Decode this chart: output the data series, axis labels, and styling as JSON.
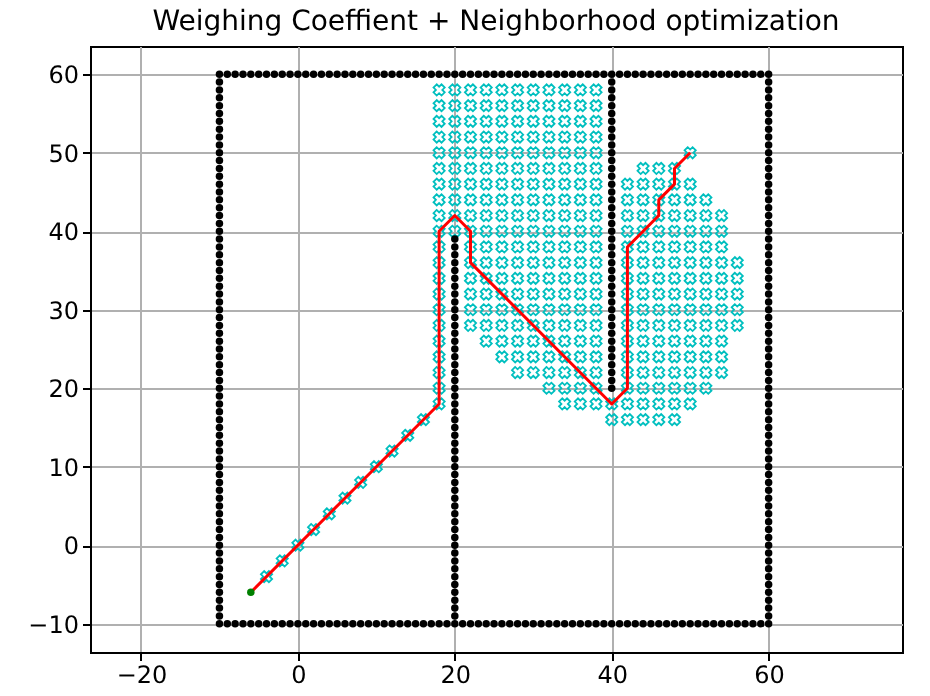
{
  "chart_data": {
    "type": "scatter",
    "title": "Weighing Coeffient + Neighborhood optimization",
    "xlim": [
      -26.5,
      77
    ],
    "ylim": [
      -13.6,
      63.6
    ],
    "xticks": [
      -20,
      0,
      20,
      40,
      60
    ],
    "yticks": [
      -10,
      0,
      10,
      20,
      30,
      40,
      50,
      60
    ],
    "grid": true,
    "series": [
      {
        "type": "scatter",
        "marker": "cross",
        "color": "#00bfbf",
        "x": [
          18,
          20,
          22,
          24,
          26,
          28,
          30,
          32,
          34,
          36,
          38
        ],
        "values": [
          58,
          58,
          58,
          58,
          58,
          58,
          58,
          58,
          58,
          58,
          58
        ]
      },
      {
        "type": "scatter",
        "marker": "cross",
        "color": "#00bfbf",
        "x": [
          18,
          20,
          22,
          24,
          26,
          28,
          30,
          32,
          34,
          36,
          38
        ],
        "values": [
          56,
          56,
          56,
          56,
          56,
          56,
          56,
          56,
          56,
          56,
          56
        ]
      },
      {
        "type": "scatter",
        "marker": "cross",
        "color": "#00bfbf",
        "x": [
          18,
          20,
          22,
          24,
          26,
          28,
          30,
          32,
          34,
          36,
          38
        ],
        "values": [
          54,
          54,
          54,
          54,
          54,
          54,
          54,
          54,
          54,
          54,
          54
        ]
      },
      {
        "type": "scatter",
        "marker": "cross",
        "color": "#00bfbf",
        "x": [
          18,
          20,
          22,
          24,
          26,
          28,
          30,
          32,
          34,
          36,
          38
        ],
        "values": [
          52,
          52,
          52,
          52,
          52,
          52,
          52,
          52,
          52,
          52,
          52
        ]
      },
      {
        "type": "scatter",
        "marker": "cross",
        "color": "#00bfbf",
        "x": [
          18,
          20,
          22,
          24,
          26,
          28,
          30,
          32,
          34,
          36,
          38,
          50
        ],
        "values": [
          50,
          50,
          50,
          50,
          50,
          50,
          50,
          50,
          50,
          50,
          50,
          50
        ]
      },
      {
        "type": "scatter",
        "marker": "cross",
        "color": "#00bfbf",
        "x": [
          18,
          20,
          22,
          24,
          26,
          28,
          30,
          32,
          34,
          36,
          38,
          44,
          46,
          48
        ],
        "values": [
          48,
          48,
          48,
          48,
          48,
          48,
          48,
          48,
          48,
          48,
          48,
          48,
          48,
          48
        ]
      },
      {
        "type": "scatter",
        "marker": "cross",
        "color": "#00bfbf",
        "x": [
          18,
          20,
          22,
          24,
          26,
          28,
          30,
          32,
          34,
          36,
          38,
          42,
          44,
          46,
          48,
          50
        ],
        "values": [
          46,
          46,
          46,
          46,
          46,
          46,
          46,
          46,
          46,
          46,
          46,
          46,
          46,
          46,
          46,
          46
        ]
      },
      {
        "type": "scatter",
        "marker": "cross",
        "color": "#00bfbf",
        "x": [
          18,
          20,
          22,
          24,
          26,
          28,
          30,
          32,
          34,
          36,
          38,
          42,
          44,
          46,
          48,
          50,
          52
        ],
        "values": [
          44,
          44,
          44,
          44,
          44,
          44,
          44,
          44,
          44,
          44,
          44,
          44,
          44,
          44,
          44,
          44,
          44
        ]
      },
      {
        "type": "scatter",
        "marker": "cross",
        "color": "#00bfbf",
        "x": [
          18,
          20,
          22,
          24,
          26,
          28,
          30,
          32,
          34,
          36,
          38,
          42,
          44,
          46,
          48,
          50,
          52,
          54
        ],
        "values": [
          42,
          42,
          42,
          42,
          42,
          42,
          42,
          42,
          42,
          42,
          42,
          42,
          42,
          42,
          42,
          42,
          42,
          42
        ]
      },
      {
        "type": "scatter",
        "marker": "cross",
        "color": "#00bfbf",
        "x": [
          18,
          20,
          22,
          24,
          26,
          28,
          30,
          32,
          34,
          36,
          38,
          42,
          44,
          46,
          48,
          50,
          52,
          54
        ],
        "values": [
          40,
          40,
          40,
          40,
          40,
          40,
          40,
          40,
          40,
          40,
          40,
          40,
          40,
          40,
          40,
          40,
          40,
          40
        ]
      },
      {
        "type": "scatter",
        "marker": "cross",
        "color": "#00bfbf",
        "x": [
          18,
          22,
          24,
          26,
          28,
          30,
          32,
          34,
          36,
          38,
          42,
          44,
          46,
          48,
          50,
          52,
          54
        ],
        "values": [
          38,
          38,
          38,
          38,
          38,
          38,
          38,
          38,
          38,
          38,
          38,
          38,
          38,
          38,
          38,
          38,
          38
        ]
      },
      {
        "type": "scatter",
        "marker": "cross",
        "color": "#00bfbf",
        "x": [
          18,
          22,
          24,
          26,
          28,
          30,
          32,
          34,
          36,
          38,
          42,
          44,
          46,
          48,
          50,
          52,
          54,
          56
        ],
        "values": [
          36,
          36,
          36,
          36,
          36,
          36,
          36,
          36,
          36,
          36,
          36,
          36,
          36,
          36,
          36,
          36,
          36,
          36
        ]
      },
      {
        "type": "scatter",
        "marker": "cross",
        "color": "#00bfbf",
        "x": [
          18,
          22,
          24,
          26,
          28,
          30,
          32,
          34,
          36,
          38,
          42,
          44,
          46,
          48,
          50,
          52,
          54,
          56
        ],
        "values": [
          34,
          34,
          34,
          34,
          34,
          34,
          34,
          34,
          34,
          34,
          34,
          34,
          34,
          34,
          34,
          34,
          34,
          34
        ]
      },
      {
        "type": "scatter",
        "marker": "cross",
        "color": "#00bfbf",
        "x": [
          18,
          22,
          24,
          26,
          28,
          30,
          32,
          34,
          36,
          38,
          42,
          44,
          46,
          48,
          50,
          52,
          54,
          56
        ],
        "values": [
          32,
          32,
          32,
          32,
          32,
          32,
          32,
          32,
          32,
          32,
          32,
          32,
          32,
          32,
          32,
          32,
          32,
          32
        ]
      },
      {
        "type": "scatter",
        "marker": "cross",
        "color": "#00bfbf",
        "x": [
          18,
          22,
          24,
          26,
          28,
          30,
          32,
          34,
          36,
          38,
          42,
          44,
          46,
          48,
          50,
          52,
          54,
          56
        ],
        "values": [
          30,
          30,
          30,
          30,
          30,
          30,
          30,
          30,
          30,
          30,
          30,
          30,
          30,
          30,
          30,
          30,
          30,
          30
        ]
      },
      {
        "type": "scatter",
        "marker": "cross",
        "color": "#00bfbf",
        "x": [
          18,
          22,
          24,
          26,
          28,
          30,
          32,
          34,
          36,
          38,
          42,
          44,
          46,
          48,
          50,
          52,
          54,
          56
        ],
        "values": [
          28,
          28,
          28,
          28,
          28,
          28,
          28,
          28,
          28,
          28,
          28,
          28,
          28,
          28,
          28,
          28,
          28,
          28
        ]
      },
      {
        "type": "scatter",
        "marker": "cross",
        "color": "#00bfbf",
        "x": [
          18,
          24,
          26,
          28,
          30,
          32,
          34,
          36,
          38,
          42,
          44,
          46,
          48,
          50,
          52,
          54
        ],
        "values": [
          26,
          26,
          26,
          26,
          26,
          26,
          26,
          26,
          26,
          26,
          26,
          26,
          26,
          26,
          26,
          26
        ]
      },
      {
        "type": "scatter",
        "marker": "cross",
        "color": "#00bfbf",
        "x": [
          18,
          26,
          28,
          30,
          32,
          34,
          36,
          38,
          42,
          44,
          46,
          48,
          50,
          52,
          54
        ],
        "values": [
          24,
          24,
          24,
          24,
          24,
          24,
          24,
          24,
          24,
          24,
          24,
          24,
          24,
          24,
          24
        ]
      },
      {
        "type": "scatter",
        "marker": "cross",
        "color": "#00bfbf",
        "x": [
          18,
          28,
          30,
          32,
          34,
          36,
          38,
          42,
          44,
          46,
          48,
          50,
          52,
          54
        ],
        "values": [
          22,
          22,
          22,
          22,
          22,
          22,
          22,
          22,
          22,
          22,
          22,
          22,
          22,
          22
        ]
      },
      {
        "type": "scatter",
        "marker": "cross",
        "color": "#00bfbf",
        "x": [
          18,
          32,
          34,
          36,
          38,
          42,
          44,
          46,
          48,
          50,
          52
        ],
        "values": [
          20,
          20,
          20,
          20,
          20,
          20,
          20,
          20,
          20,
          20,
          20
        ]
      },
      {
        "type": "scatter",
        "marker": "cross",
        "color": "#00bfbf",
        "x": [
          18,
          34,
          36,
          38,
          40,
          42,
          44,
          46,
          48,
          50
        ],
        "values": [
          18,
          18,
          18,
          18,
          18,
          18,
          18,
          18,
          18,
          18
        ]
      },
      {
        "type": "scatter",
        "marker": "cross",
        "color": "#00bfbf",
        "x": [
          40,
          42,
          44,
          46,
          48
        ],
        "values": [
          16,
          16,
          16,
          16,
          16
        ]
      },
      {
        "type": "scatter",
        "marker": "cross",
        "color": "#00bfbf",
        "x": [
          -4,
          -2,
          0,
          2,
          4,
          6,
          8,
          10,
          12,
          14,
          16
        ],
        "values": [
          -4,
          -2,
          0,
          2,
          4,
          6,
          8,
          10,
          12,
          14,
          16
        ]
      },
      {
        "type": "scatter",
        "marker": "circle",
        "color": "#000000",
        "x": [
          -10,
          -10,
          -10,
          -10,
          -10,
          -10,
          -10,
          -10,
          -10,
          -10,
          -10,
          -10,
          -10,
          -10,
          -10,
          -10,
          -10,
          -10,
          -10,
          -10,
          -10,
          -10,
          -10,
          -10,
          -10,
          -10,
          -10,
          -10,
          -10,
          -10,
          -10,
          -10,
          -10,
          -10,
          -10,
          -10,
          -10,
          -10,
          -10,
          -10,
          -10,
          -10,
          -10,
          -10,
          -10,
          -10,
          -10,
          -10,
          -10,
          -10,
          -10,
          -10,
          -10,
          -10,
          -10,
          -10,
          -10,
          -10,
          -10,
          -10,
          -10,
          -10,
          -10,
          -10,
          -10,
          -10,
          -10,
          -10,
          -10,
          -10,
          -10
        ],
        "values": [
          -10,
          -9,
          -8,
          -7,
          -6,
          -5,
          -4,
          -3,
          -2,
          -1,
          0,
          1,
          2,
          3,
          4,
          5,
          6,
          7,
          8,
          9,
          10,
          11,
          12,
          13,
          14,
          15,
          16,
          17,
          18,
          19,
          20,
          21,
          22,
          23,
          24,
          25,
          26,
          27,
          28,
          29,
          30,
          31,
          32,
          33,
          34,
          35,
          36,
          37,
          38,
          39,
          40,
          41,
          42,
          43,
          44,
          45,
          46,
          47,
          48,
          49,
          50,
          51,
          52,
          53,
          54,
          55,
          56,
          57,
          58,
          59,
          60
        ]
      },
      {
        "type": "scatter",
        "marker": "circle",
        "color": "#000000",
        "x": [
          -9,
          -8,
          -7,
          -6,
          -5,
          -4,
          -3,
          -2,
          -1,
          0,
          1,
          2,
          3,
          4,
          5,
          6,
          7,
          8,
          9,
          10,
          11,
          12,
          13,
          14,
          15,
          16,
          17,
          18,
          19,
          20,
          21,
          22,
          23,
          24,
          25,
          26,
          27,
          28,
          29,
          30,
          31,
          32,
          33,
          34,
          35,
          36,
          37,
          38,
          39,
          40,
          41,
          42,
          43,
          44,
          45,
          46,
          47,
          48,
          49,
          50,
          51,
          52,
          53,
          54,
          55,
          56,
          57,
          58,
          59,
          60
        ],
        "values": [
          60,
          60,
          60,
          60,
          60,
          60,
          60,
          60,
          60,
          60,
          60,
          60,
          60,
          60,
          60,
          60,
          60,
          60,
          60,
          60,
          60,
          60,
          60,
          60,
          60,
          60,
          60,
          60,
          60,
          60,
          60,
          60,
          60,
          60,
          60,
          60,
          60,
          60,
          60,
          60,
          60,
          60,
          60,
          60,
          60,
          60,
          60,
          60,
          60,
          60,
          60,
          60,
          60,
          60,
          60,
          60,
          60,
          60,
          60,
          60,
          60,
          60,
          60,
          60,
          60,
          60,
          60,
          60,
          60,
          60
        ]
      },
      {
        "type": "scatter",
        "marker": "circle",
        "color": "#000000",
        "x": [
          60,
          60,
          60,
          60,
          60,
          60,
          60,
          60,
          60,
          60,
          60,
          60,
          60,
          60,
          60,
          60,
          60,
          60,
          60,
          60,
          60,
          60,
          60,
          60,
          60,
          60,
          60,
          60,
          60,
          60,
          60,
          60,
          60,
          60,
          60,
          60,
          60,
          60,
          60,
          60,
          60,
          60,
          60,
          60,
          60,
          60,
          60,
          60,
          60,
          60,
          60,
          60,
          60,
          60,
          60,
          60,
          60,
          60,
          60,
          60,
          60,
          60,
          60,
          60,
          60,
          60,
          60,
          60,
          60,
          60
        ],
        "values": [
          -10,
          -9,
          -8,
          -7,
          -6,
          -5,
          -4,
          -3,
          -2,
          -1,
          0,
          1,
          2,
          3,
          4,
          5,
          6,
          7,
          8,
          9,
          10,
          11,
          12,
          13,
          14,
          15,
          16,
          17,
          18,
          19,
          20,
          21,
          22,
          23,
          24,
          25,
          26,
          27,
          28,
          29,
          30,
          31,
          32,
          33,
          34,
          35,
          36,
          37,
          38,
          39,
          40,
          41,
          42,
          43,
          44,
          45,
          46,
          47,
          48,
          49,
          50,
          51,
          52,
          53,
          54,
          55,
          56,
          57,
          58,
          59
        ]
      },
      {
        "type": "scatter",
        "marker": "circle",
        "color": "#000000",
        "x": [
          -9,
          -8,
          -7,
          -6,
          -5,
          -4,
          -3,
          -2,
          -1,
          0,
          1,
          2,
          3,
          4,
          5,
          6,
          7,
          8,
          9,
          10,
          11,
          12,
          13,
          14,
          15,
          16,
          17,
          18,
          19,
          20,
          21,
          22,
          23,
          24,
          25,
          26,
          27,
          28,
          29,
          30,
          31,
          32,
          33,
          34,
          35,
          36,
          37,
          38,
          39,
          40,
          41,
          42,
          43,
          44,
          45,
          46,
          47,
          48,
          49,
          50,
          51,
          52,
          53,
          54,
          55,
          56,
          57,
          58,
          59
        ],
        "values": [
          -10,
          -10,
          -10,
          -10,
          -10,
          -10,
          -10,
          -10,
          -10,
          -10,
          -10,
          -10,
          -10,
          -10,
          -10,
          -10,
          -10,
          -10,
          -10,
          -10,
          -10,
          -10,
          -10,
          -10,
          -10,
          -10,
          -10,
          -10,
          -10,
          -10,
          -10,
          -10,
          -10,
          -10,
          -10,
          -10,
          -10,
          -10,
          -10,
          -10,
          -10,
          -10,
          -10,
          -10,
          -10,
          -10,
          -10,
          -10,
          -10,
          -10,
          -10,
          -10,
          -10,
          -10,
          -10,
          -10,
          -10,
          -10,
          -10,
          -10,
          -10,
          -10,
          -10,
          -10,
          -10,
          -10,
          -10,
          -10,
          -10
        ]
      },
      {
        "type": "scatter",
        "marker": "circle",
        "color": "#000000",
        "x": [
          20,
          20,
          20,
          20,
          20,
          20,
          20,
          20,
          20,
          20,
          20,
          20,
          20,
          20,
          20,
          20,
          20,
          20,
          20,
          20,
          20,
          20,
          20,
          20,
          20,
          20,
          20,
          20,
          20,
          20,
          20,
          20,
          20,
          20,
          20,
          20,
          20,
          20,
          20,
          20,
          20,
          20,
          20,
          20,
          20,
          20,
          20,
          20,
          20
        ],
        "values": [
          -9,
          -8,
          -7,
          -6,
          -5,
          -4,
          -3,
          -2,
          -1,
          0,
          1,
          2,
          3,
          4,
          5,
          6,
          7,
          8,
          9,
          10,
          11,
          12,
          13,
          14,
          15,
          16,
          17,
          18,
          19,
          20,
          21,
          22,
          23,
          24,
          25,
          26,
          27,
          28,
          29,
          30,
          31,
          32,
          33,
          34,
          35,
          36,
          37,
          38,
          39
        ]
      },
      {
        "type": "scatter",
        "marker": "circle",
        "color": "#000000",
        "x": [
          40,
          40,
          40,
          40,
          40,
          40,
          40,
          40,
          40,
          40,
          40,
          40,
          40,
          40,
          40,
          40,
          40,
          40,
          40,
          40,
          40,
          40,
          40,
          40,
          40,
          40,
          40,
          40,
          40,
          40,
          40,
          40,
          40,
          40,
          40,
          40,
          40,
          40,
          40,
          40
        ],
        "values": [
          20,
          21,
          22,
          23,
          24,
          25,
          26,
          27,
          28,
          29,
          30,
          31,
          32,
          33,
          34,
          35,
          36,
          37,
          38,
          39,
          40,
          41,
          42,
          43,
          44,
          45,
          46,
          47,
          48,
          49,
          50,
          51,
          52,
          53,
          54,
          55,
          56,
          57,
          58,
          59
        ]
      },
      {
        "type": "line",
        "color": "#ff0000",
        "x": [
          -6,
          18,
          18,
          20,
          22,
          22,
          40,
          42,
          42,
          44,
          46,
          46,
          48,
          48,
          50
        ],
        "values": [
          -6,
          18,
          40,
          42,
          40,
          36,
          18,
          20,
          38,
          40,
          42,
          44,
          46,
          48,
          50
        ]
      },
      {
        "type": "scatter",
        "marker": "circle",
        "color": "#008000",
        "x": [
          -6
        ],
        "values": [
          -6
        ]
      }
    ]
  }
}
